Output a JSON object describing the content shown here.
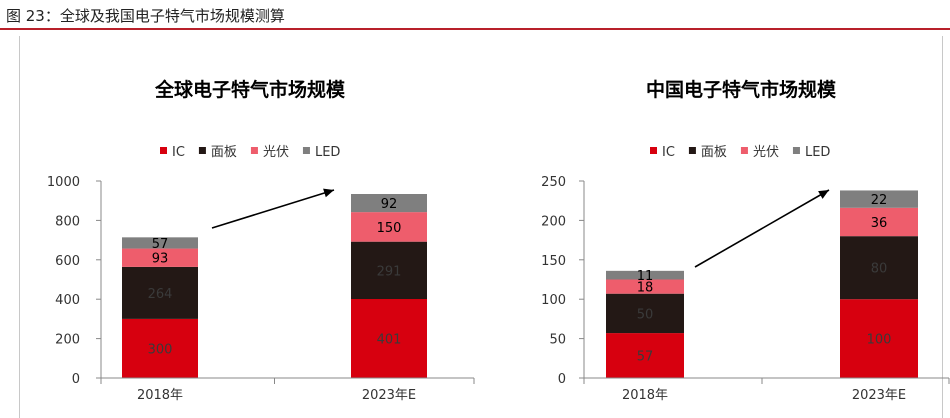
{
  "figure_title": "图 23：全球及我国电子特气市场规模测算",
  "colors": {
    "IC": "#d7000f",
    "面板": "#231815",
    "光伏": "#ee5d6c",
    "LED": "#7f7f7f",
    "header_rule": "#b8202a"
  },
  "chart_data": [
    {
      "type": "bar",
      "stacked": true,
      "title": "全球电子特气市场规模",
      "categories": [
        "2018年",
        "2023年E"
      ],
      "series": [
        {
          "name": "IC",
          "values": [
            300,
            401
          ]
        },
        {
          "name": "面板",
          "values": [
            264,
            291
          ]
        },
        {
          "name": "光伏",
          "values": [
            93,
            150
          ]
        },
        {
          "name": "LED",
          "values": [
            57,
            92
          ]
        }
      ],
      "ylim": [
        0,
        1000
      ],
      "yticks": [
        0,
        200,
        400,
        600,
        800,
        1000
      ],
      "legend": "top",
      "annotation": "arrow from 2018年 to 2023年E"
    },
    {
      "type": "bar",
      "stacked": true,
      "title": "中国电子特气市场规模",
      "categories": [
        "2018年",
        "2023年E"
      ],
      "series": [
        {
          "name": "IC",
          "values": [
            57,
            100
          ]
        },
        {
          "name": "面板",
          "values": [
            50,
            80
          ]
        },
        {
          "name": "光伏",
          "values": [
            18,
            36
          ]
        },
        {
          "name": "LED",
          "values": [
            11,
            22
          ]
        }
      ],
      "ylim": [
        0,
        250
      ],
      "yticks": [
        0,
        50,
        100,
        150,
        200,
        250
      ],
      "legend": "top",
      "annotation": "arrow from 2018年 to 2023年E"
    }
  ]
}
